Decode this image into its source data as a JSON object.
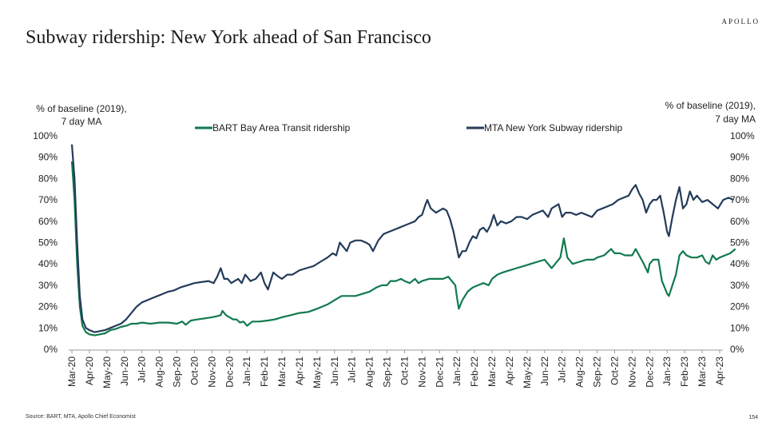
{
  "header": {
    "title": "Subway ridership: New York ahead of San Francisco",
    "brand": "APOLLO"
  },
  "footer": {
    "source": "Source: BART, MTA, Apollo Chief Economist",
    "page_number": "154"
  },
  "colors": {
    "bart": "#117a4f",
    "mta": "#243b5a"
  },
  "chart_data": {
    "type": "line",
    "title": "Subway ridership: New York ahead of San Francisco",
    "ylabel_left": "% of baseline (2019),\n7 day MA",
    "ylabel_right": "% of baseline (2019),\n7 day MA",
    "ylim": [
      0,
      100
    ],
    "yticks": [
      "0%",
      "10%",
      "20%",
      "30%",
      "40%",
      "50%",
      "60%",
      "70%",
      "80%",
      "90%",
      "100%"
    ],
    "xticks": [
      "Mar-20",
      "Apr-20",
      "May-20",
      "Jun-20",
      "Jul-20",
      "Aug-20",
      "Sep-20",
      "Oct-20",
      "Nov-20",
      "Dec-20",
      "Jan-21",
      "Feb-21",
      "Mar-21",
      "Apr-21",
      "May-21",
      "Jun-21",
      "Jul-21",
      "Aug-21",
      "Sep-21",
      "Oct-21",
      "Nov-21",
      "Dec-21",
      "Jan-22",
      "Feb-22",
      "Mar-22",
      "Apr-22",
      "May-22",
      "Jun-22",
      "Jul-22",
      "Aug-22",
      "Sep-22",
      "Oct-22",
      "Nov-22",
      "Dec-22",
      "Jan-23",
      "Feb-23",
      "Mar-23",
      "Apr-23"
    ],
    "grid": false,
    "legend_position": "top",
    "series": [
      {
        "name": "BART Bay Area Transit ridership",
        "color": "#117a4f",
        "points": [
          [
            0.0,
            88
          ],
          [
            0.15,
            70
          ],
          [
            0.3,
            40
          ],
          [
            0.45,
            20
          ],
          [
            0.6,
            11
          ],
          [
            0.8,
            8
          ],
          [
            1.0,
            7
          ],
          [
            1.3,
            6.5
          ],
          [
            1.6,
            7
          ],
          [
            1.9,
            7.5
          ],
          [
            2.2,
            9
          ],
          [
            2.5,
            9.5
          ],
          [
            2.8,
            10.5
          ],
          [
            3.1,
            11
          ],
          [
            3.4,
            12
          ],
          [
            3.7,
            12
          ],
          [
            4.0,
            12.5
          ],
          [
            4.5,
            12
          ],
          [
            5.0,
            12.5
          ],
          [
            5.5,
            12.5
          ],
          [
            6.0,
            12
          ],
          [
            6.3,
            13
          ],
          [
            6.5,
            11.5
          ],
          [
            6.8,
            13.5
          ],
          [
            7.2,
            14
          ],
          [
            7.6,
            14.5
          ],
          [
            8.0,
            15
          ],
          [
            8.3,
            15.5
          ],
          [
            8.5,
            16
          ],
          [
            8.6,
            18
          ],
          [
            8.8,
            16
          ],
          [
            9.0,
            15
          ],
          [
            9.2,
            14
          ],
          [
            9.4,
            14
          ],
          [
            9.6,
            12.5
          ],
          [
            9.8,
            13
          ],
          [
            10.0,
            11
          ],
          [
            10.3,
            13
          ],
          [
            10.7,
            13
          ],
          [
            11.2,
            13.5
          ],
          [
            11.6,
            14
          ],
          [
            12.0,
            15
          ],
          [
            12.5,
            16
          ],
          [
            13.0,
            17
          ],
          [
            13.5,
            17.5
          ],
          [
            14.0,
            19
          ],
          [
            14.3,
            20
          ],
          [
            14.6,
            21
          ],
          [
            15.0,
            23
          ],
          [
            15.4,
            25
          ],
          [
            15.8,
            25
          ],
          [
            16.2,
            25
          ],
          [
            16.6,
            26
          ],
          [
            17.0,
            27
          ],
          [
            17.4,
            29
          ],
          [
            17.7,
            30
          ],
          [
            18.0,
            30
          ],
          [
            18.2,
            32
          ],
          [
            18.5,
            32
          ],
          [
            18.8,
            33
          ],
          [
            19.0,
            32
          ],
          [
            19.3,
            31
          ],
          [
            19.6,
            33
          ],
          [
            19.8,
            31
          ],
          [
            20.0,
            32
          ],
          [
            20.4,
            33
          ],
          [
            20.8,
            33
          ],
          [
            21.2,
            33
          ],
          [
            21.5,
            34
          ],
          [
            21.6,
            33
          ],
          [
            21.9,
            30
          ],
          [
            22.0,
            24
          ],
          [
            22.1,
            19
          ],
          [
            22.3,
            23
          ],
          [
            22.6,
            27
          ],
          [
            22.9,
            29
          ],
          [
            23.2,
            30
          ],
          [
            23.5,
            31
          ],
          [
            23.8,
            30
          ],
          [
            24.0,
            33
          ],
          [
            24.3,
            35
          ],
          [
            24.6,
            36
          ],
          [
            25.0,
            37
          ],
          [
            25.4,
            38
          ],
          [
            25.8,
            39
          ],
          [
            26.2,
            40
          ],
          [
            26.6,
            41
          ],
          [
            27.0,
            42
          ],
          [
            27.4,
            38
          ],
          [
            27.6,
            40
          ],
          [
            27.9,
            43
          ],
          [
            28.1,
            52
          ],
          [
            28.3,
            43
          ],
          [
            28.6,
            40
          ],
          [
            29.0,
            41
          ],
          [
            29.4,
            42
          ],
          [
            29.8,
            42
          ],
          [
            30.0,
            43
          ],
          [
            30.4,
            44
          ],
          [
            30.8,
            47
          ],
          [
            31.0,
            45
          ],
          [
            31.3,
            45
          ],
          [
            31.6,
            44
          ],
          [
            32.0,
            44
          ],
          [
            32.2,
            47
          ],
          [
            32.4,
            44
          ],
          [
            32.6,
            41
          ],
          [
            32.9,
            36
          ],
          [
            33.0,
            40
          ],
          [
            33.2,
            42
          ],
          [
            33.5,
            42
          ],
          [
            33.7,
            32
          ],
          [
            33.9,
            28
          ],
          [
            34.0,
            26
          ],
          [
            34.1,
            25
          ],
          [
            34.3,
            30
          ],
          [
            34.5,
            35
          ],
          [
            34.7,
            44
          ],
          [
            34.9,
            46
          ],
          [
            35.1,
            44
          ],
          [
            35.4,
            43
          ],
          [
            35.7,
            43
          ],
          [
            36.0,
            44
          ],
          [
            36.2,
            41
          ],
          [
            36.4,
            40
          ],
          [
            36.6,
            44
          ],
          [
            36.8,
            42
          ],
          [
            37.0,
            43
          ],
          [
            37.3,
            44
          ],
          [
            37.6,
            45
          ],
          [
            37.9,
            47
          ]
        ]
      },
      {
        "name": "MTA New York Subway ridership",
        "color": "#243b5a",
        "points": [
          [
            0.0,
            96
          ],
          [
            0.15,
            80
          ],
          [
            0.3,
            50
          ],
          [
            0.45,
            25
          ],
          [
            0.6,
            14
          ],
          [
            0.8,
            10
          ],
          [
            1.0,
            9
          ],
          [
            1.3,
            8
          ],
          [
            1.6,
            8.5
          ],
          [
            1.9,
            9
          ],
          [
            2.2,
            10
          ],
          [
            2.5,
            11
          ],
          [
            2.8,
            12
          ],
          [
            3.1,
            14
          ],
          [
            3.4,
            17
          ],
          [
            3.7,
            20
          ],
          [
            4.0,
            22
          ],
          [
            4.3,
            23
          ],
          [
            4.6,
            24
          ],
          [
            4.9,
            25
          ],
          [
            5.2,
            26
          ],
          [
            5.5,
            27
          ],
          [
            5.8,
            27.5
          ],
          [
            6.2,
            29
          ],
          [
            6.6,
            30
          ],
          [
            7.0,
            31
          ],
          [
            7.4,
            31.5
          ],
          [
            7.8,
            32
          ],
          [
            8.1,
            31
          ],
          [
            8.3,
            34
          ],
          [
            8.5,
            38
          ],
          [
            8.7,
            33
          ],
          [
            8.9,
            33
          ],
          [
            9.1,
            31
          ],
          [
            9.3,
            32
          ],
          [
            9.5,
            33
          ],
          [
            9.7,
            31
          ],
          [
            9.9,
            35
          ],
          [
            10.2,
            32
          ],
          [
            10.5,
            33
          ],
          [
            10.8,
            36
          ],
          [
            11.0,
            31
          ],
          [
            11.2,
            28
          ],
          [
            11.5,
            36
          ],
          [
            11.8,
            34
          ],
          [
            12.0,
            33
          ],
          [
            12.3,
            35
          ],
          [
            12.6,
            35
          ],
          [
            13.0,
            37
          ],
          [
            13.4,
            38
          ],
          [
            13.8,
            39
          ],
          [
            14.2,
            41
          ],
          [
            14.6,
            43
          ],
          [
            14.9,
            45
          ],
          [
            15.1,
            44
          ],
          [
            15.3,
            50
          ],
          [
            15.5,
            48
          ],
          [
            15.7,
            46
          ],
          [
            15.9,
            50
          ],
          [
            16.2,
            51
          ],
          [
            16.5,
            51
          ],
          [
            16.8,
            50
          ],
          [
            17.0,
            49
          ],
          [
            17.2,
            46
          ],
          [
            17.5,
            51
          ],
          [
            17.8,
            54
          ],
          [
            18.1,
            55
          ],
          [
            18.4,
            56
          ],
          [
            18.7,
            57
          ],
          [
            19.0,
            58
          ],
          [
            19.3,
            59
          ],
          [
            19.6,
            60
          ],
          [
            19.8,
            62
          ],
          [
            20.0,
            63
          ],
          [
            20.2,
            68
          ],
          [
            20.3,
            70
          ],
          [
            20.5,
            66
          ],
          [
            20.8,
            64
          ],
          [
            21.0,
            65
          ],
          [
            21.2,
            66
          ],
          [
            21.4,
            65
          ],
          [
            21.6,
            61
          ],
          [
            21.8,
            55
          ],
          [
            22.0,
            47
          ],
          [
            22.1,
            43
          ],
          [
            22.3,
            46
          ],
          [
            22.5,
            46
          ],
          [
            22.7,
            50
          ],
          [
            22.9,
            53
          ],
          [
            23.1,
            52
          ],
          [
            23.3,
            56
          ],
          [
            23.5,
            57
          ],
          [
            23.7,
            55
          ],
          [
            23.9,
            58
          ],
          [
            24.1,
            63
          ],
          [
            24.3,
            58
          ],
          [
            24.5,
            60
          ],
          [
            24.8,
            59
          ],
          [
            25.1,
            60
          ],
          [
            25.4,
            62
          ],
          [
            25.7,
            62
          ],
          [
            26.0,
            61
          ],
          [
            26.3,
            63
          ],
          [
            26.6,
            64
          ],
          [
            26.9,
            65
          ],
          [
            27.2,
            62
          ],
          [
            27.4,
            66
          ],
          [
            27.6,
            67
          ],
          [
            27.8,
            68
          ],
          [
            28.0,
            62
          ],
          [
            28.2,
            64
          ],
          [
            28.5,
            64
          ],
          [
            28.8,
            63
          ],
          [
            29.1,
            64
          ],
          [
            29.4,
            63
          ],
          [
            29.7,
            62
          ],
          [
            30.0,
            65
          ],
          [
            30.3,
            66
          ],
          [
            30.6,
            67
          ],
          [
            30.9,
            68
          ],
          [
            31.2,
            70
          ],
          [
            31.5,
            71
          ],
          [
            31.8,
            72
          ],
          [
            32.0,
            75
          ],
          [
            32.2,
            77
          ],
          [
            32.4,
            73
          ],
          [
            32.6,
            70
          ],
          [
            32.8,
            64
          ],
          [
            33.0,
            68
          ],
          [
            33.2,
            70
          ],
          [
            33.4,
            70
          ],
          [
            33.6,
            72
          ],
          [
            33.8,
            64
          ],
          [
            34.0,
            55
          ],
          [
            34.1,
            53
          ],
          [
            34.3,
            62
          ],
          [
            34.5,
            70
          ],
          [
            34.7,
            76
          ],
          [
            34.9,
            66
          ],
          [
            35.1,
            68
          ],
          [
            35.3,
            74
          ],
          [
            35.5,
            70
          ],
          [
            35.7,
            72
          ],
          [
            36.0,
            69
          ],
          [
            36.3,
            70
          ],
          [
            36.6,
            68
          ],
          [
            36.9,
            66
          ],
          [
            37.2,
            70
          ],
          [
            37.5,
            71
          ],
          [
            37.8,
            70
          ]
        ]
      }
    ]
  }
}
